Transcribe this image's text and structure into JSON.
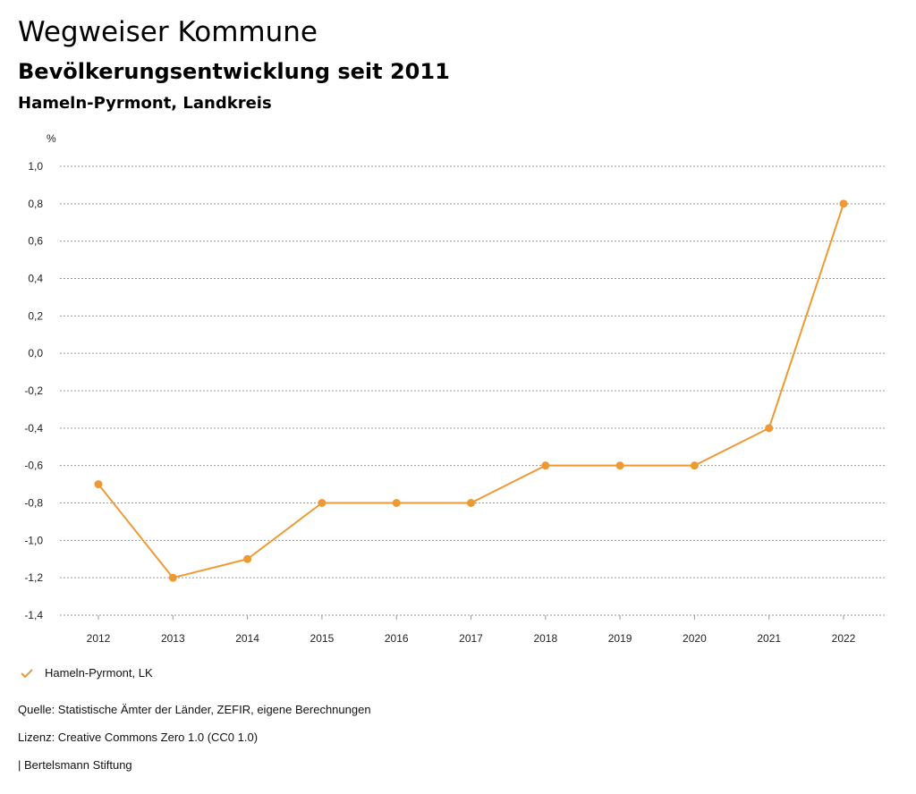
{
  "header": {
    "title": "Wegweiser Kommune",
    "subtitle": "Bevölkerungsentwicklung seit 2011",
    "region": "Hameln-Pyrmont, Landkreis"
  },
  "chart_data": {
    "type": "line",
    "x": [
      "2012",
      "2013",
      "2014",
      "2015",
      "2016",
      "2017",
      "2018",
      "2019",
      "2020",
      "2021",
      "2022"
    ],
    "series": [
      {
        "name": "Hameln-Pyrmont, LK",
        "values": [
          -0.7,
          -1.2,
          -1.1,
          -0.8,
          -0.8,
          -0.8,
          -0.6,
          -0.6,
          -0.6,
          -0.4,
          0.8
        ]
      }
    ],
    "ylabel": "%",
    "ylim": [
      -1.4,
      1.0
    ],
    "yticks": [
      "1,0",
      "0,8",
      "0,6",
      "0,4",
      "0,2",
      "0,0",
      "-0,2",
      "-0,4",
      "-0,6",
      "-0,8",
      "-1,0",
      "-1,2",
      "-1,4"
    ],
    "grid": true,
    "legend_position": "bottom-left",
    "color": "#EE9933"
  },
  "legend": {
    "label": "Hameln-Pyrmont, LK"
  },
  "footer": {
    "source": "Quelle: Statistische Ämter der Länder, ZEFIR, eigene Berechnungen",
    "license": "Lizenz: Creative Commons Zero 1.0 (CC0 1.0)",
    "publisher": "| Bertelsmann Stiftung"
  }
}
